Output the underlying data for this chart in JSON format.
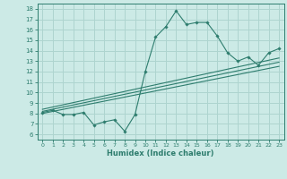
{
  "x_main": [
    0,
    1,
    2,
    3,
    4,
    5,
    6,
    7,
    8,
    9,
    10,
    11,
    12,
    13,
    14,
    15,
    16,
    17,
    18,
    19,
    20,
    21,
    22,
    23
  ],
  "y_main": [
    8.1,
    8.3,
    7.9,
    7.9,
    8.1,
    6.9,
    7.2,
    7.4,
    6.3,
    7.9,
    12.0,
    15.3,
    16.3,
    17.8,
    16.5,
    16.7,
    16.7,
    15.4,
    13.8,
    13.0,
    13.4,
    12.6,
    13.8,
    14.2
  ],
  "line_color": "#2e7d6e",
  "background_color": "#cceae6",
  "grid_color": "#aed4cf",
  "xlabel": "Humidex (Indice chaleur)",
  "xlim": [
    -0.5,
    23.5
  ],
  "ylim": [
    5.5,
    18.5
  ],
  "yticks": [
    6,
    7,
    8,
    9,
    10,
    11,
    12,
    13,
    14,
    15,
    16,
    17,
    18
  ],
  "xticks": [
    0,
    1,
    2,
    3,
    4,
    5,
    6,
    7,
    8,
    9,
    10,
    11,
    12,
    13,
    14,
    15,
    16,
    17,
    18,
    19,
    20,
    21,
    22,
    23
  ],
  "regression_lines": [
    {
      "x_start": 0,
      "x_end": 23,
      "y_start": 8.0,
      "y_end": 12.5
    },
    {
      "x_start": 0,
      "x_end": 23,
      "y_start": 8.2,
      "y_end": 12.9
    },
    {
      "x_start": 0,
      "x_end": 23,
      "y_start": 8.4,
      "y_end": 13.3
    }
  ]
}
